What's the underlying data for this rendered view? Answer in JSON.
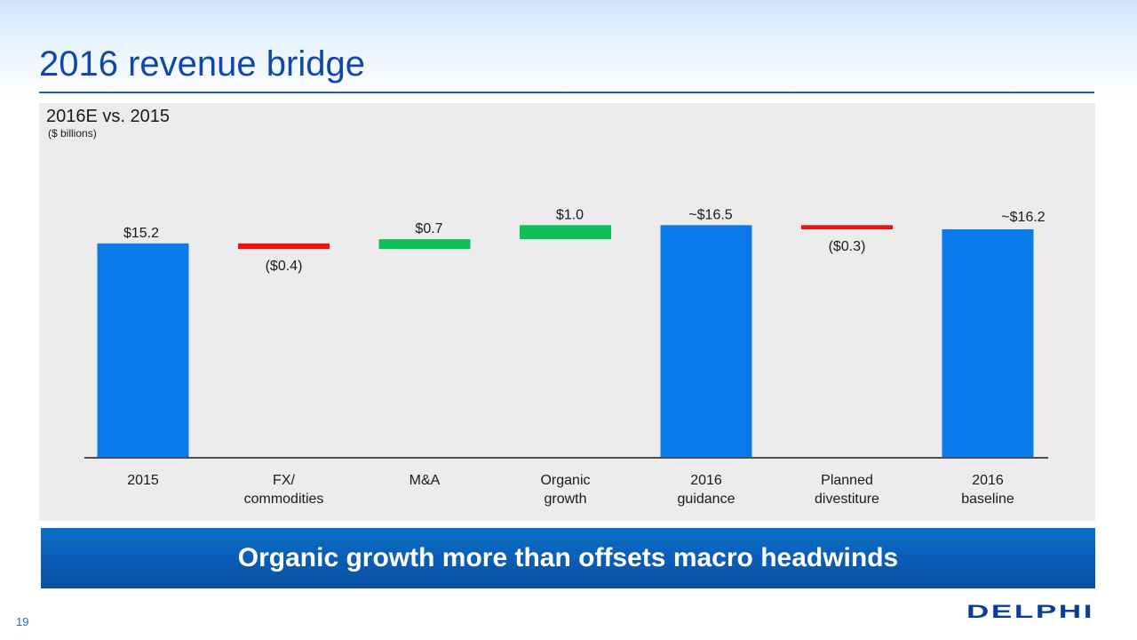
{
  "slide": {
    "title": "2016 revenue bridge",
    "page_number": "19",
    "banner_text": "Organic growth more than offsets macro headwinds",
    "logo_text": "DELPHI"
  },
  "colors": {
    "title": "#1148a8",
    "total": "#0a7aea",
    "increase": "#0cbf56",
    "decrease": "#f20f0f",
    "panel": "#ececec"
  },
  "chart_data": {
    "type": "bar",
    "subtype": "waterfall",
    "title": "2016E vs. 2015",
    "unit_label": "($ billions)",
    "categories": [
      [
        "2015"
      ],
      [
        "FX/",
        "commodities"
      ],
      [
        "M&A"
      ],
      [
        "Organic",
        "growth"
      ],
      [
        "2016",
        "guidance"
      ],
      [
        "Planned",
        "divestiture"
      ],
      [
        "2016",
        "baseline"
      ]
    ],
    "bars": [
      {
        "kind": "total",
        "start": 0,
        "end": 15.2,
        "label": "$15.2"
      },
      {
        "kind": "decrease",
        "start": 15.2,
        "end": 14.8,
        "label": "($0.4)"
      },
      {
        "kind": "increase",
        "start": 14.8,
        "end": 15.5,
        "label": "$0.7"
      },
      {
        "kind": "increase",
        "start": 15.5,
        "end": 16.5,
        "label": "$1.0"
      },
      {
        "kind": "total",
        "start": 0,
        "end": 16.5,
        "label": "~$16.5"
      },
      {
        "kind": "decrease",
        "start": 16.5,
        "end": 16.2,
        "label": "($0.3)"
      },
      {
        "kind": "total",
        "start": 0,
        "end": 16.2,
        "label": "~$16.2"
      }
    ],
    "ylim": [
      0,
      18.5
    ],
    "grid": false,
    "legend": false
  }
}
